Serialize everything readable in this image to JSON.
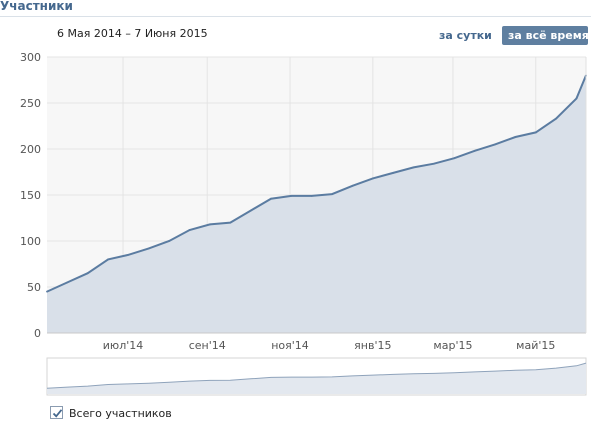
{
  "header": {
    "title": "Участники"
  },
  "range": {
    "dates": "6 Мая 2014 – 7 Июня 2015",
    "day_label": "за сутки",
    "all_label": "за всё время"
  },
  "legend": {
    "series_label": "Всего участников",
    "checked": true
  },
  "colors": {
    "line": "#5b7ca1",
    "fill": "#d9e0e9",
    "plot_bg": "#f7f7f7",
    "grid": "#e4e4e4"
  },
  "chart_data": {
    "type": "area",
    "ylim": [
      0,
      300
    ],
    "y_ticks": [
      "0",
      "50",
      "100",
      "150",
      "200",
      "250",
      "300"
    ],
    "x_ticks": [
      "июл'14",
      "сен'14",
      "ноя'14",
      "янв'15",
      "мар'15",
      "май'15"
    ],
    "series": [
      {
        "name": "Всего участников",
        "x": [
          "2014-05-06",
          "2014-05-21",
          "2014-06-05",
          "2014-06-20",
          "2014-07-05",
          "2014-07-20",
          "2014-08-04",
          "2014-08-19",
          "2014-09-03",
          "2014-09-18",
          "2014-10-03",
          "2014-10-18",
          "2014-11-02",
          "2014-11-17",
          "2014-12-02",
          "2014-12-17",
          "2015-01-01",
          "2015-01-16",
          "2015-01-31",
          "2015-02-15",
          "2015-03-02",
          "2015-03-17",
          "2015-04-01",
          "2015-04-16",
          "2015-05-01",
          "2015-05-16",
          "2015-05-31",
          "2015-06-07"
        ],
        "values": [
          45,
          55,
          65,
          80,
          85,
          92,
          100,
          112,
          118,
          120,
          133,
          146,
          149,
          149,
          151,
          160,
          168,
          174,
          180,
          184,
          190,
          198,
          205,
          213,
          218,
          233,
          255,
          280
        ]
      }
    ]
  },
  "navigator": {
    "type": "area"
  }
}
